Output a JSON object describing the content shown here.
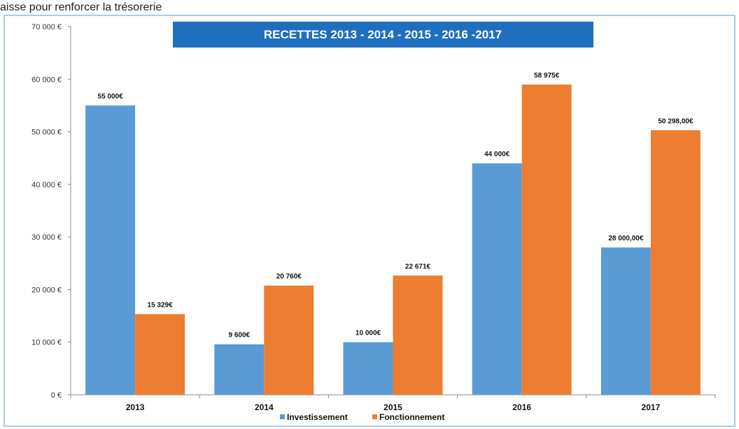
{
  "caption_top": "aisse pour renforcer la trésorerie",
  "chart_data": {
    "type": "bar",
    "title": "RECETTES 2013 - 2014 - 2015 - 2016 -2017",
    "categories": [
      "2013",
      "2014",
      "2015",
      "2016",
      "2017"
    ],
    "ylim": [
      0,
      70000
    ],
    "y_ticks": [
      "0 €",
      "10 000 €",
      "20 000 €",
      "30 000 €",
      "40 000 €",
      "50 000 €",
      "60 000 €",
      "70 000 €"
    ],
    "grid": false,
    "legend_position": "bottom",
    "series": [
      {
        "name": "Investissement",
        "color": "#5b9bd5",
        "values": [
          55000,
          9600,
          10000,
          44000,
          28000
        ],
        "labels": [
          "55 000€",
          "9 600€",
          "10 000€",
          "44 000€",
          "28 000,00€"
        ]
      },
      {
        "name": "Fonctionnement",
        "color": "#ed7d31",
        "values": [
          15329,
          20760,
          22671,
          58975,
          50298
        ],
        "labels": [
          "15 329€",
          "20 760€",
          "22 671€",
          "58 975€",
          "50 298,00€"
        ]
      }
    ],
    "title_bg_color": "#1f6fbf",
    "border_color": "#8fb8de"
  }
}
